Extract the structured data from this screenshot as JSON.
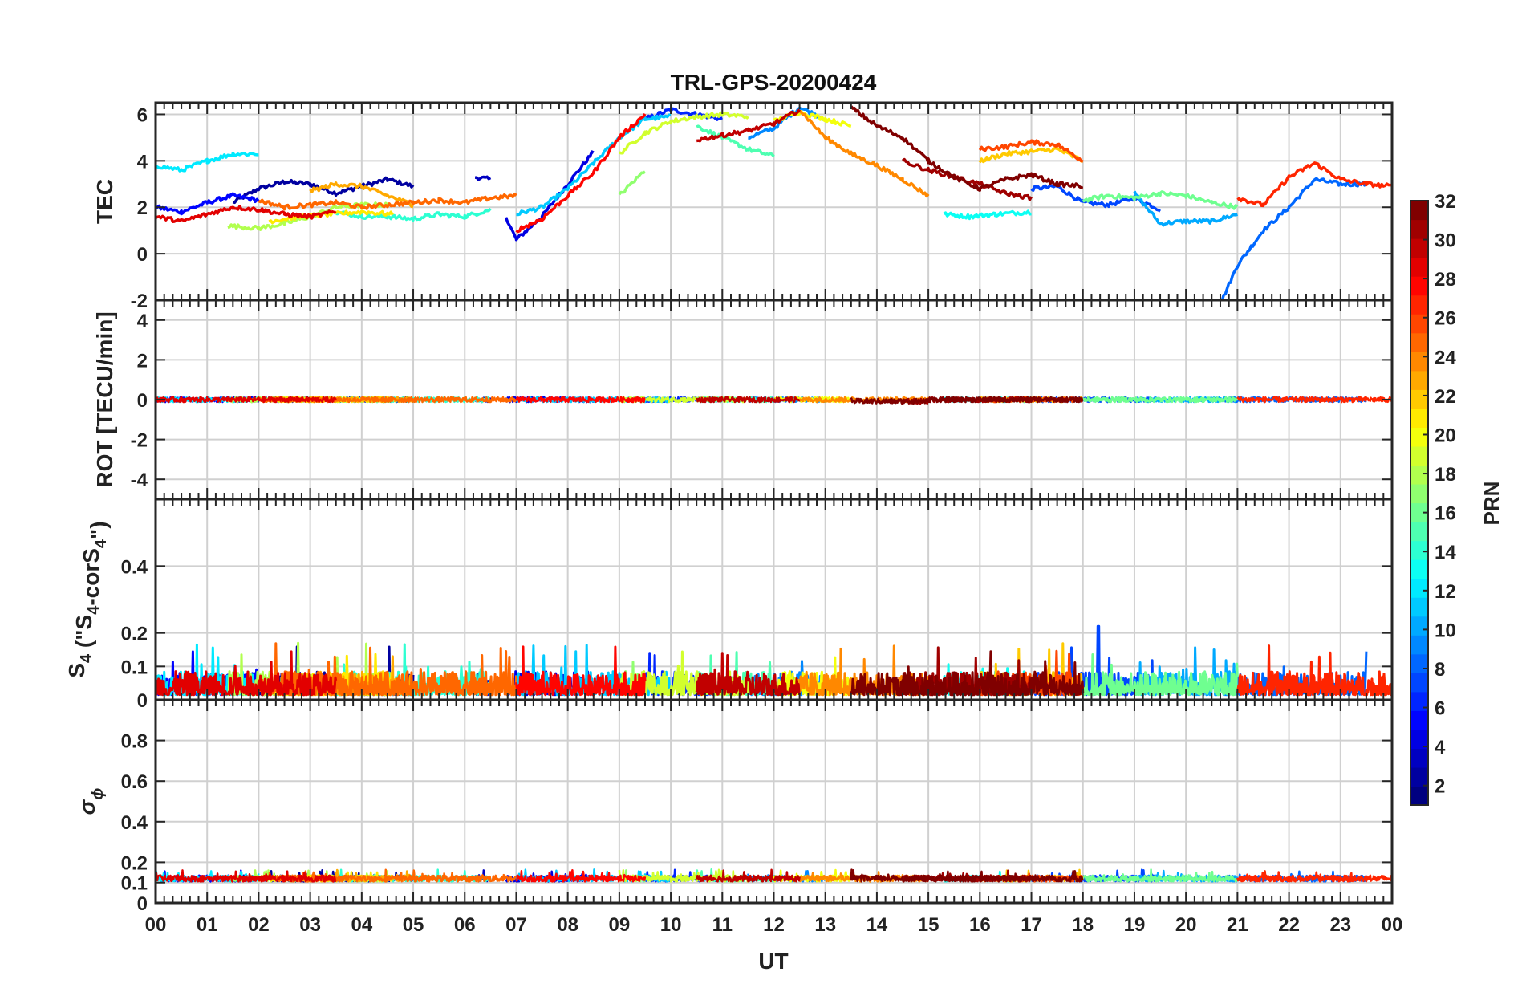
{
  "chart_data": {
    "type": "line",
    "title": "TRL-GPS-20200424",
    "xlabel": "UT",
    "x_tick_labels": [
      "00",
      "01",
      "02",
      "03",
      "04",
      "05",
      "06",
      "07",
      "08",
      "09",
      "10",
      "11",
      "12",
      "13",
      "14",
      "15",
      "16",
      "17",
      "18",
      "19",
      "20",
      "21",
      "22",
      "23",
      "00"
    ],
    "xlim": [
      0,
      24
    ],
    "grid": true,
    "panels": [
      {
        "id": "tec",
        "ylabel": "TEC",
        "ylim": [
          -2,
          6.5
        ],
        "yticks": [
          -2,
          0,
          2,
          4,
          6
        ],
        "ytick_labels": [
          "-2",
          "0",
          "2",
          "4",
          "6"
        ]
      },
      {
        "id": "rot",
        "ylabel": "ROT [TECU/min]",
        "ylim": [
          -5,
          5
        ],
        "yticks": [
          -4,
          -2,
          0,
          2,
          4
        ],
        "ytick_labels": [
          "-4",
          "-2",
          "0",
          "2",
          "4"
        ]
      },
      {
        "id": "s4",
        "ylabel_main": "S",
        "ylabel_sub": "4",
        "ylabel_mid": " (\"S",
        "ylabel_sub2": "4",
        "ylabel_mid2": "-corS",
        "ylabel_sub3": "4",
        "ylabel_end": "\")",
        "ylim": [
          0,
          0.6
        ],
        "yticks": [
          0,
          0.1,
          0.2,
          0.4
        ],
        "ytick_labels": [
          "0",
          "0.1",
          "0.2",
          "0.4"
        ]
      },
      {
        "id": "sigma",
        "ylabel_main": "σ",
        "ylabel_sub": "ϕ",
        "ylim": [
          0,
          1
        ],
        "yticks": [
          0,
          0.1,
          0.2,
          0.4,
          0.6,
          0.8
        ],
        "ytick_labels": [
          "0",
          "0.1",
          "0.2",
          "0.4",
          "0.6",
          "0.8"
        ]
      }
    ],
    "colorbar": {
      "label": "PRN",
      "range": [
        1,
        32
      ],
      "ticks": [
        2,
        4,
        6,
        8,
        10,
        12,
        14,
        16,
        18,
        20,
        22,
        24,
        26,
        28,
        30,
        32
      ],
      "tick_labels": [
        "2",
        "4",
        "6",
        "8",
        "10",
        "12",
        "14",
        "16",
        "18",
        "20",
        "22",
        "24",
        "26",
        "28",
        "30",
        "32"
      ],
      "colormap": "jet"
    },
    "series": [
      {
        "name": "PRN 2",
        "prn": 2,
        "tec": [
          [
            1.5,
            2.2
          ],
          [
            2.0,
            2.8
          ],
          [
            2.5,
            3.1
          ],
          [
            3.0,
            3.0
          ],
          [
            3.5,
            2.6
          ],
          [
            4.0,
            2.9
          ],
          [
            4.5,
            3.2
          ],
          [
            5.0,
            2.9
          ]
        ]
      },
      {
        "name": "PRN 3",
        "prn": 3,
        "tec": [
          [
            6.2,
            3.3
          ],
          [
            6.5,
            3.2
          ]
        ]
      },
      {
        "name": "PRN 4",
        "prn": 4,
        "tec": [
          [
            6.8,
            1.6
          ],
          [
            7.0,
            0.6
          ],
          [
            7.5,
            1.6
          ],
          [
            8.0,
            3.0
          ],
          [
            8.5,
            4.4
          ]
        ]
      },
      {
        "name": "PRN 5",
        "prn": 5,
        "tec": [
          [
            0.0,
            2.0
          ],
          [
            0.5,
            1.8
          ],
          [
            1.0,
            2.2
          ],
          [
            1.5,
            2.5
          ],
          [
            2.0,
            2.3
          ]
        ]
      },
      {
        "name": "PRN 6",
        "prn": 6,
        "tec": [
          [
            9.5,
            5.8
          ],
          [
            10.0,
            6.2
          ],
          [
            10.5,
            6.0
          ],
          [
            11.0,
            5.8
          ]
        ]
      },
      {
        "name": "PRN 7",
        "prn": 7,
        "tec": [
          [
            17.0,
            2.8
          ],
          [
            17.5,
            2.9
          ],
          [
            18.0,
            2.2
          ],
          [
            18.5,
            2.1
          ],
          [
            19.0,
            2.4
          ],
          [
            19.5,
            1.9
          ]
        ]
      },
      {
        "name": "PRN 8",
        "prn": 8,
        "tec": [
          [
            20.7,
            -2.0
          ],
          [
            21.0,
            -0.5
          ],
          [
            21.5,
            1.0
          ],
          [
            22.0,
            2.0
          ],
          [
            22.5,
            3.2
          ],
          [
            23.0,
            3.0
          ],
          [
            23.5,
            3.0
          ]
        ]
      },
      {
        "name": "PRN 9",
        "prn": 9,
        "tec": [
          [
            11.5,
            5.0
          ],
          [
            12.0,
            5.4
          ],
          [
            12.5,
            6.3
          ],
          [
            13.0,
            5.8
          ]
        ]
      },
      {
        "name": "PRN 10",
        "prn": 10,
        "tec": [
          [
            19.0,
            2.6
          ],
          [
            19.5,
            1.3
          ],
          [
            20.0,
            1.4
          ],
          [
            20.5,
            1.4
          ],
          [
            21.0,
            1.7
          ]
        ]
      },
      {
        "name": "PRN 11",
        "prn": 11,
        "tec": [
          [
            7.0,
            1.7
          ],
          [
            7.5,
            2.0
          ],
          [
            8.0,
            2.8
          ],
          [
            8.5,
            3.9
          ],
          [
            9.0,
            5.0
          ],
          [
            9.5,
            5.8
          ],
          [
            10.0,
            5.9
          ]
        ]
      },
      {
        "name": "PRN 12",
        "prn": 12,
        "tec": [
          [
            0.0,
            3.8
          ],
          [
            0.5,
            3.6
          ],
          [
            1.0,
            4.0
          ],
          [
            1.5,
            4.3
          ],
          [
            2.0,
            4.3
          ]
        ]
      },
      {
        "name": "PRN 13",
        "prn": 13,
        "tec": [
          [
            15.3,
            1.7
          ],
          [
            15.8,
            1.6
          ],
          [
            16.3,
            1.7
          ],
          [
            17.0,
            1.8
          ]
        ]
      },
      {
        "name": "PRN 14",
        "prn": 14,
        "tec": [
          [
            3.5,
            1.8
          ],
          [
            4.0,
            1.6
          ],
          [
            4.5,
            1.6
          ],
          [
            5.0,
            1.5
          ],
          [
            5.5,
            1.7
          ],
          [
            6.0,
            1.6
          ],
          [
            6.5,
            1.9
          ]
        ]
      },
      {
        "name": "PRN 15",
        "prn": 15,
        "tec": [
          [
            10.5,
            5.5
          ],
          [
            11.0,
            5.0
          ],
          [
            11.5,
            4.5
          ],
          [
            12.0,
            4.2
          ]
        ]
      },
      {
        "name": "PRN 16",
        "prn": 16,
        "tec": [
          [
            18.0,
            2.3
          ],
          [
            18.5,
            2.5
          ],
          [
            19.0,
            2.4
          ],
          [
            19.5,
            2.6
          ],
          [
            20.0,
            2.5
          ],
          [
            20.5,
            2.2
          ],
          [
            21.0,
            2.0
          ]
        ]
      },
      {
        "name": "PRN 17",
        "prn": 17,
        "tec": [
          [
            9.0,
            2.5
          ],
          [
            9.5,
            3.6
          ]
        ]
      },
      {
        "name": "PRN 18",
        "prn": 18,
        "tec": [
          [
            1.4,
            1.2
          ],
          [
            2.0,
            1.1
          ],
          [
            2.5,
            1.3
          ],
          [
            3.0,
            1.6
          ],
          [
            3.5,
            2.0
          ],
          [
            4.0,
            2.1
          ],
          [
            4.5,
            2.1
          ]
        ]
      },
      {
        "name": "PRN 19",
        "prn": 19,
        "tec": [
          [
            9.0,
            4.3
          ],
          [
            9.5,
            5.2
          ],
          [
            10.0,
            5.7
          ],
          [
            10.5,
            5.9
          ],
          [
            11.0,
            6.0
          ],
          [
            11.5,
            5.9
          ]
        ]
      },
      {
        "name": "PRN 20",
        "prn": 20,
        "tec": [
          [
            12.0,
            5.7
          ],
          [
            12.5,
            6.1
          ],
          [
            13.0,
            5.8
          ],
          [
            13.5,
            5.5
          ]
        ]
      },
      {
        "name": "PRN 21",
        "prn": 21,
        "tec": [
          [
            2.2,
            1.4
          ],
          [
            2.8,
            1.6
          ],
          [
            3.4,
            1.7
          ],
          [
            4.0,
            1.8
          ],
          [
            4.6,
            1.7
          ]
        ]
      },
      {
        "name": "PRN 22",
        "prn": 22,
        "tec": [
          [
            16.0,
            4.0
          ],
          [
            16.5,
            4.3
          ],
          [
            17.0,
            4.4
          ],
          [
            17.5,
            4.5
          ],
          [
            18.0,
            4.0
          ]
        ]
      },
      {
        "name": "PRN 23",
        "prn": 23,
        "tec": [
          [
            3.0,
            2.7
          ],
          [
            3.5,
            3.0
          ],
          [
            4.0,
            2.9
          ],
          [
            4.5,
            2.5
          ],
          [
            5.0,
            2.1
          ]
        ]
      },
      {
        "name": "PRN 24",
        "prn": 24,
        "tec": [
          [
            12.5,
            6.2
          ],
          [
            13.0,
            5.0
          ],
          [
            13.5,
            4.3
          ],
          [
            14.0,
            3.8
          ],
          [
            14.5,
            3.2
          ],
          [
            15.0,
            2.5
          ]
        ]
      },
      {
        "name": "PRN 25",
        "prn": 25,
        "tec": [
          [
            2.0,
            2.3
          ],
          [
            2.5,
            2.0
          ],
          [
            3.0,
            2.1
          ],
          [
            3.5,
            2.2
          ],
          [
            4.0,
            2.0
          ],
          [
            4.5,
            2.1
          ],
          [
            5.0,
            2.2
          ],
          [
            5.5,
            2.3
          ],
          [
            6.0,
            2.2
          ],
          [
            6.5,
            2.4
          ],
          [
            7.0,
            2.5
          ]
        ]
      },
      {
        "name": "PRN 26",
        "prn": 26,
        "tec": [
          [
            16.0,
            4.5
          ],
          [
            16.5,
            4.6
          ],
          [
            17.0,
            4.8
          ],
          [
            17.5,
            4.7
          ],
          [
            18.0,
            4.0
          ]
        ]
      },
      {
        "name": "PRN 27",
        "prn": 27,
        "tec": [
          [
            21.0,
            2.4
          ],
          [
            21.5,
            2.1
          ],
          [
            22.0,
            3.3
          ],
          [
            22.5,
            3.9
          ],
          [
            23.0,
            3.2
          ],
          [
            23.5,
            3.0
          ],
          [
            24.0,
            2.9
          ]
        ]
      },
      {
        "name": "PRN 28",
        "prn": 28,
        "tec": [
          [
            7.0,
            1.0
          ],
          [
            7.5,
            1.5
          ],
          [
            8.0,
            2.5
          ],
          [
            8.5,
            3.5
          ],
          [
            9.0,
            5.0
          ],
          [
            9.5,
            6.0
          ]
        ]
      },
      {
        "name": "PRN 29",
        "prn": 29,
        "tec": [
          [
            0.0,
            1.6
          ],
          [
            0.5,
            1.4
          ],
          [
            1.0,
            1.7
          ],
          [
            1.5,
            2.0
          ],
          [
            2.0,
            1.9
          ],
          [
            2.5,
            1.7
          ],
          [
            3.0,
            1.6
          ],
          [
            3.5,
            1.8
          ]
        ]
      },
      {
        "name": "PRN 30",
        "prn": 30,
        "tec": [
          [
            10.5,
            4.9
          ],
          [
            11.0,
            5.1
          ],
          [
            11.5,
            5.3
          ],
          [
            12.0,
            5.6
          ],
          [
            12.5,
            6.2
          ]
        ]
      },
      {
        "name": "PRN 31",
        "prn": 31,
        "tec": [
          [
            14.5,
            4.0
          ],
          [
            15.0,
            3.6
          ],
          [
            15.5,
            3.3
          ],
          [
            16.0,
            3.0
          ],
          [
            16.5,
            2.6
          ],
          [
            17.0,
            2.4
          ]
        ]
      },
      {
        "name": "PRN 32",
        "prn": 32,
        "tec": [
          [
            13.5,
            6.3
          ],
          [
            14.0,
            5.5
          ],
          [
            14.5,
            5.0
          ],
          [
            15.0,
            4.0
          ],
          [
            15.5,
            3.3
          ],
          [
            16.0,
            2.8
          ],
          [
            16.5,
            3.2
          ],
          [
            17.0,
            3.4
          ],
          [
            17.5,
            3.0
          ],
          [
            18.0,
            2.9
          ]
        ]
      }
    ],
    "rot_summary": "All PRN ROT values lie within about -0.2 to 0.3 TECU/min around 0",
    "s4_summary": "All PRN S4 values fluctuate between about 0.01 and 0.2 (peak 0.22 near 18.3 UT)",
    "sigma_summary": "All PRN sigma phi values cluster near 0.10 to 0.17"
  }
}
